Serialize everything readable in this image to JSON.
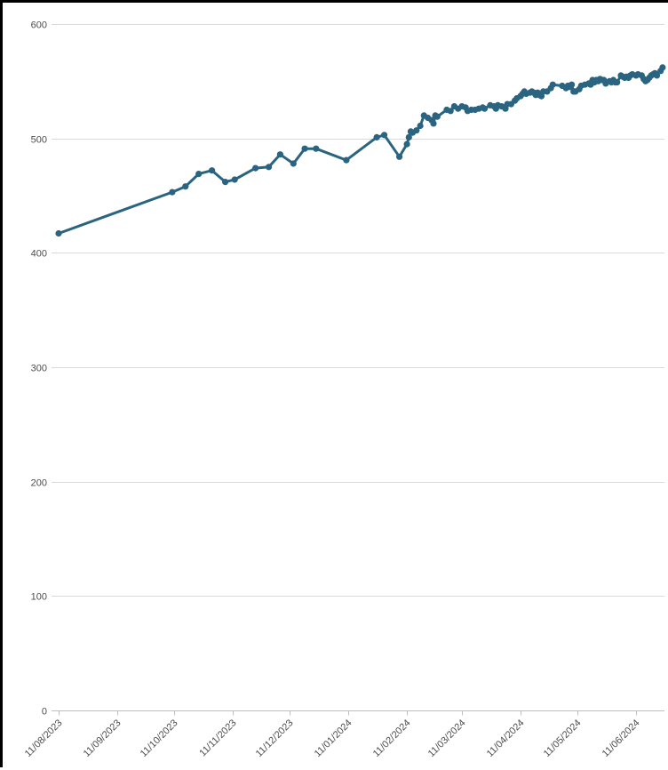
{
  "chart_data": {
    "type": "line",
    "title": "",
    "xlabel": "",
    "ylabel": "",
    "ylim": [
      0,
      600
    ],
    "yticks": [
      "0",
      "100",
      "200",
      "300",
      "400",
      "500",
      "600"
    ],
    "yticks_values": [
      0,
      100,
      200,
      300,
      400,
      500,
      600
    ],
    "xlim": [
      "2023-08-11",
      "2024-06-26"
    ],
    "xticks": [
      "11/08/2023",
      "11/09/2023",
      "11/10/2023",
      "11/11/2023",
      "11/12/2023",
      "11/01/2024",
      "11/02/2024",
      "11/03/2024",
      "11/04/2024",
      "11/05/2024",
      "11/06/2024"
    ],
    "xticks_dates": [
      "2023-08-11",
      "2023-09-11",
      "2023-10-11",
      "2023-11-11",
      "2023-12-11",
      "2024-01-11",
      "2024-02-11",
      "2024-03-11",
      "2024-04-11",
      "2024-05-11",
      "2024-06-11"
    ],
    "grid": true,
    "legend": "none",
    "color": "#2b6480",
    "series": [
      {
        "x": [
          "2023-08-11",
          "2023-10-10",
          "2023-10-17",
          "2023-10-24",
          "2023-10-31",
          "2023-11-07",
          "2023-11-12",
          "2023-11-23",
          "2023-11-30",
          "2023-12-06",
          "2023-12-13",
          "2023-12-19",
          "2023-12-25",
          "2024-01-10",
          "2024-01-26",
          "2024-01-30",
          "2024-02-07",
          "2024-02-11",
          "2024-02-12",
          "2024-02-13",
          "2024-02-14",
          "2024-02-16",
          "2024-02-18",
          "2024-02-20",
          "2024-02-22",
          "2024-02-24",
          "2024-02-25",
          "2024-02-26",
          "2024-02-27",
          "2024-03-03",
          "2024-03-05",
          "2024-03-07",
          "2024-03-09",
          "2024-03-11",
          "2024-03-13",
          "2024-03-14",
          "2024-03-16",
          "2024-03-18",
          "2024-03-20",
          "2024-03-22",
          "2024-03-23",
          "2024-03-26",
          "2024-03-28",
          "2024-03-29",
          "2024-03-30",
          "2024-04-01",
          "2024-04-03",
          "2024-04-04",
          "2024-04-06",
          "2024-04-08",
          "2024-04-09",
          "2024-04-11",
          "2024-04-12",
          "2024-04-13",
          "2024-04-14",
          "2024-04-16",
          "2024-04-17",
          "2024-04-18",
          "2024-04-19",
          "2024-04-20",
          "2024-04-21",
          "2024-04-22",
          "2024-04-23",
          "2024-04-25",
          "2024-04-27",
          "2024-04-28",
          "2024-05-03",
          "2024-05-05",
          "2024-05-06",
          "2024-05-07",
          "2024-05-08",
          "2024-05-09",
          "2024-05-10",
          "2024-05-12",
          "2024-05-13",
          "2024-05-15",
          "2024-05-17",
          "2024-05-18",
          "2024-05-19",
          "2024-05-20",
          "2024-05-21",
          "2024-05-22",
          "2024-05-23",
          "2024-05-24",
          "2024-05-25",
          "2024-05-26",
          "2024-05-28",
          "2024-05-29",
          "2024-05-30",
          "2024-05-31",
          "2024-06-01",
          "2024-06-03",
          "2024-06-04",
          "2024-06-05",
          "2024-06-06",
          "2024-06-07",
          "2024-06-08",
          "2024-06-09",
          "2024-06-11",
          "2024-06-12",
          "2024-06-14",
          "2024-06-15",
          "2024-06-16",
          "2024-06-17",
          "2024-06-18",
          "2024-06-19",
          "2024-06-20",
          "2024-06-21",
          "2024-06-22",
          "2024-06-24",
          "2024-06-25"
        ],
        "y": [
          417,
          453,
          458,
          469,
          472,
          462,
          464,
          474,
          475,
          486,
          478,
          491,
          491,
          481,
          501,
          503,
          484,
          495,
          501,
          506,
          505,
          507,
          511,
          520,
          518,
          516,
          513,
          520,
          519,
          525,
          524,
          528,
          526,
          528,
          527,
          524,
          525,
          525,
          526,
          527,
          526,
          529,
          528,
          526,
          529,
          528,
          526,
          530,
          530,
          533,
          535,
          537,
          539,
          541,
          539,
          540,
          541,
          540,
          538,
          540,
          538,
          537,
          541,
          541,
          544,
          547,
          546,
          544,
          546,
          545,
          547,
          541,
          541,
          543,
          546,
          547,
          548,
          547,
          551,
          549,
          551,
          550,
          552,
          551,
          551,
          548,
          550,
          549,
          551,
          549,
          549,
          555,
          554,
          553,
          554,
          553,
          555,
          556,
          555,
          556,
          555,
          552,
          550,
          551,
          553,
          555,
          556,
          557,
          555,
          559,
          562
        ]
      }
    ]
  }
}
